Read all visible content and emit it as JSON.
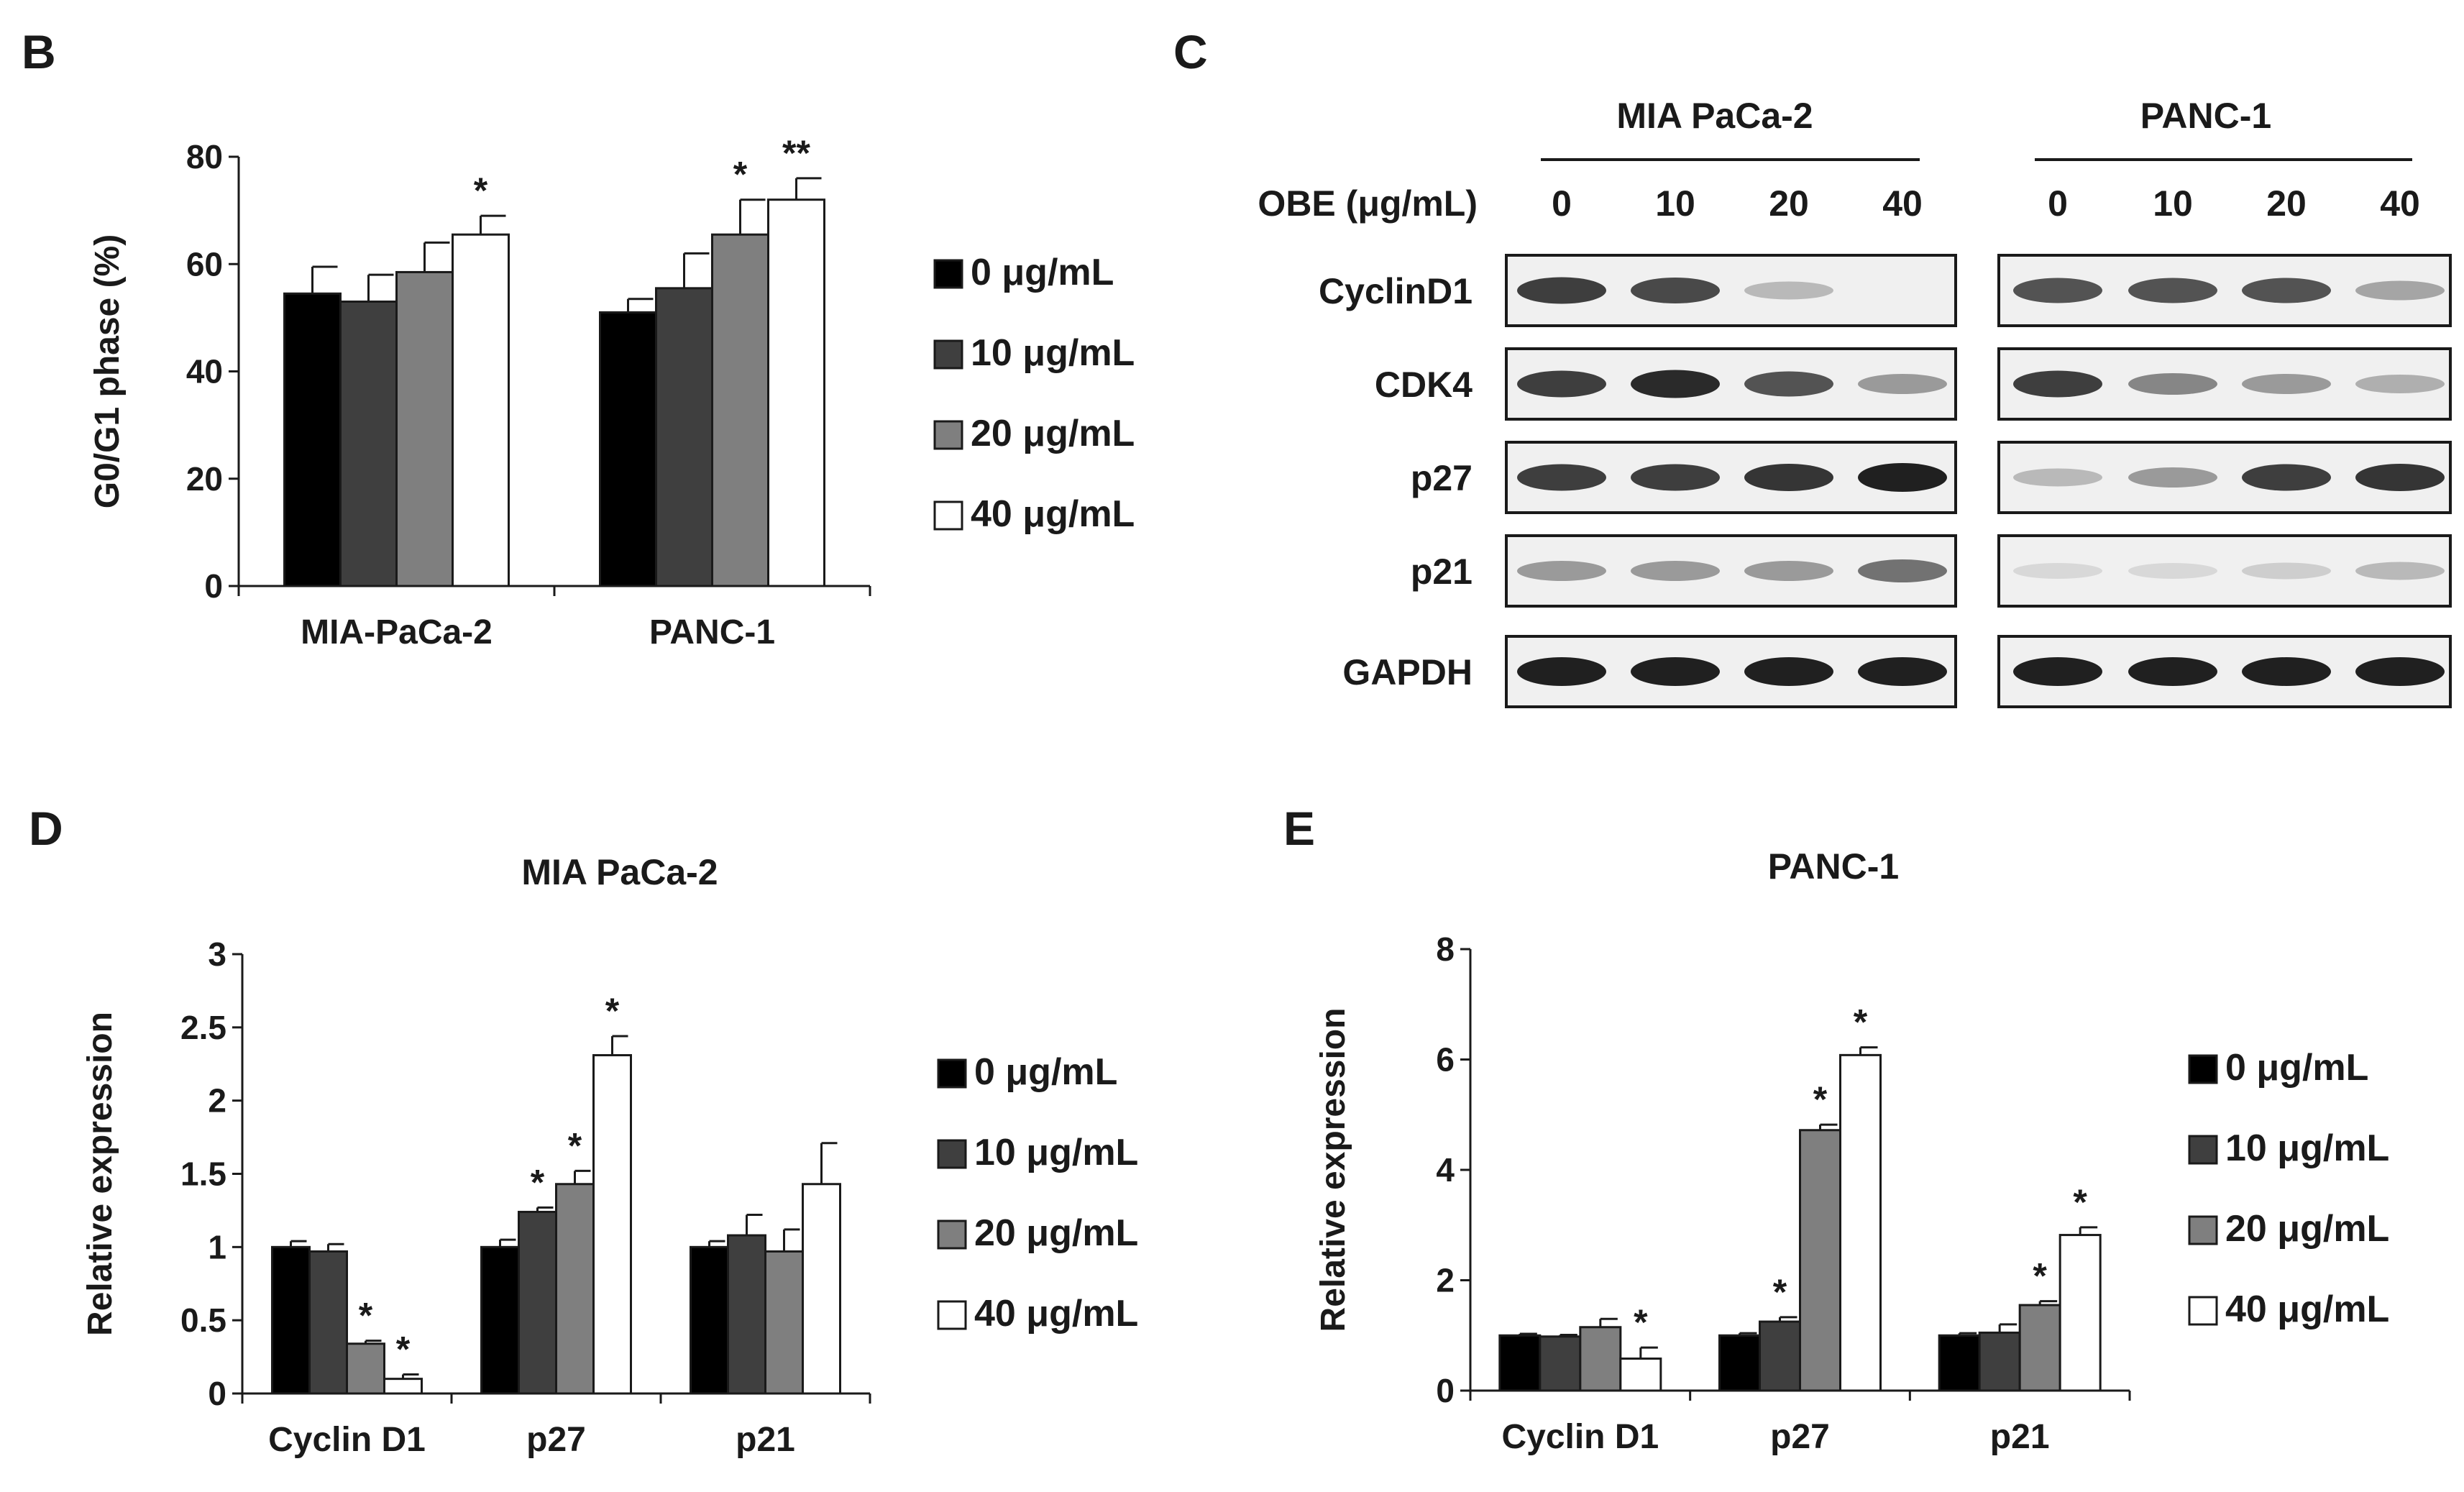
{
  "panels": {
    "B": "B",
    "C": "C",
    "D": "D",
    "E": "E"
  },
  "legend_labels": [
    "0 μg/mL",
    "10 μg/mL",
    "20 μg/mL",
    "40 μg/mL"
  ],
  "series_colors": [
    "#000000",
    "#3f3f3f",
    "#7f7f7f",
    "#ffffff"
  ],
  "blot": {
    "groups": [
      "MIA PaCa-2",
      "PANC-1"
    ],
    "dose_label": "OBE  (μg/mL)",
    "doses": [
      "0",
      "10",
      "20",
      "40"
    ],
    "proteins": [
      "CyclinD1",
      "CDK4",
      "p27",
      "p21",
      "GAPDH"
    ],
    "band_intensity": {
      "MIA PaCa-2": {
        "CyclinD1": [
          0.85,
          0.8,
          0.25,
          0.0
        ],
        "CDK4": [
          0.85,
          0.95,
          0.75,
          0.4
        ],
        "p27": [
          0.85,
          0.85,
          0.9,
          1.0
        ],
        "p21": [
          0.4,
          0.4,
          0.4,
          0.6
        ],
        "GAPDH": [
          1.0,
          1.0,
          1.0,
          1.0
        ]
      },
      "PANC-1": {
        "CyclinD1": [
          0.75,
          0.75,
          0.75,
          0.35
        ],
        "CDK4": [
          0.85,
          0.5,
          0.4,
          0.3
        ],
        "p27": [
          0.25,
          0.4,
          0.85,
          0.9
        ],
        "p21": [
          0.1,
          0.1,
          0.15,
          0.25
        ],
        "GAPDH": [
          1.0,
          1.0,
          1.0,
          1.0
        ]
      }
    }
  },
  "chart_data": [
    {
      "id": "B",
      "type": "bar",
      "title": "",
      "ylabel": "G0/G1 phase (%)",
      "xlabel": "",
      "ylim": [
        0,
        80
      ],
      "yticks": [
        0,
        20,
        40,
        60,
        80
      ],
      "ytick_labels": [
        "0",
        "20",
        "40",
        "60",
        "80"
      ],
      "categories": [
        "MIA-PaCa-2",
        "PANC-1"
      ],
      "series": [
        {
          "name": "0 μg/mL",
          "values": [
            54.5,
            51
          ],
          "errors": [
            5,
            2.5
          ],
          "annotations": [
            "",
            ""
          ]
        },
        {
          "name": "10 μg/mL",
          "values": [
            53,
            55.5
          ],
          "errors": [
            5,
            6.5
          ],
          "annotations": [
            "",
            ""
          ]
        },
        {
          "name": "20 μg/mL",
          "values": [
            58.5,
            65.5
          ],
          "errors": [
            5.5,
            6.5
          ],
          "annotations": [
            "",
            "*"
          ]
        },
        {
          "name": "40 μg/mL",
          "values": [
            65.5,
            72
          ],
          "errors": [
            3.5,
            4
          ],
          "annotations": [
            "*",
            "**"
          ]
        }
      ],
      "legend": "right"
    },
    {
      "id": "D",
      "type": "bar",
      "title": "MIA PaCa-2",
      "ylabel": "Relative expression",
      "xlabel": "",
      "ylim": [
        0,
        3
      ],
      "yticks": [
        0,
        0.5,
        1,
        1.5,
        2,
        2.5,
        3
      ],
      "ytick_labels": [
        "0",
        "0.5",
        "1",
        "1.5",
        "2",
        "2.5",
        "3"
      ],
      "categories": [
        "Cyclin D1",
        "p27",
        "p21"
      ],
      "series": [
        {
          "name": "0 μg/mL",
          "values": [
            1.0,
            1.0,
            1.0
          ],
          "errors": [
            0.04,
            0.05,
            0.04
          ],
          "annotations": [
            "",
            "",
            ""
          ]
        },
        {
          "name": "10 μg/mL",
          "values": [
            0.97,
            1.24,
            1.08
          ],
          "errors": [
            0.05,
            0.03,
            0.14
          ],
          "annotations": [
            "",
            "*",
            ""
          ]
        },
        {
          "name": "20 μg/mL",
          "values": [
            0.34,
            1.43,
            0.97
          ],
          "errors": [
            0.02,
            0.09,
            0.15
          ],
          "annotations": [
            "*",
            "*",
            ""
          ]
        },
        {
          "name": "40 μg/mL",
          "values": [
            0.1,
            2.31,
            1.43
          ],
          "errors": [
            0.03,
            0.13,
            0.28
          ],
          "annotations": [
            "*",
            "*",
            ""
          ]
        }
      ],
      "legend": "right"
    },
    {
      "id": "E",
      "type": "bar",
      "title": "PANC-1",
      "ylabel": "Relative expression",
      "xlabel": "",
      "ylim": [
        0,
        8
      ],
      "yticks": [
        0,
        2,
        4,
        6,
        8
      ],
      "ytick_labels": [
        "0",
        "2",
        "4",
        "6",
        "8"
      ],
      "categories": [
        "Cyclin D1",
        "p27",
        "p21"
      ],
      "series": [
        {
          "name": "0 μg/mL",
          "values": [
            1.0,
            1.0,
            1.0
          ],
          "errors": [
            0.03,
            0.04,
            0.04
          ],
          "annotations": [
            "",
            "",
            ""
          ]
        },
        {
          "name": "10 μg/mL",
          "values": [
            0.98,
            1.25,
            1.05
          ],
          "errors": [
            0.03,
            0.08,
            0.15
          ],
          "annotations": [
            "",
            "*",
            ""
          ]
        },
        {
          "name": "20 μg/mL",
          "values": [
            1.15,
            4.72,
            1.55
          ],
          "errors": [
            0.15,
            0.1,
            0.07
          ],
          "annotations": [
            "",
            "*",
            "*"
          ]
        },
        {
          "name": "40 μg/mL",
          "values": [
            0.58,
            6.08,
            2.82
          ],
          "errors": [
            0.2,
            0.14,
            0.14
          ],
          "annotations": [
            "*",
            "*",
            "*"
          ]
        }
      ],
      "legend": "right"
    }
  ]
}
